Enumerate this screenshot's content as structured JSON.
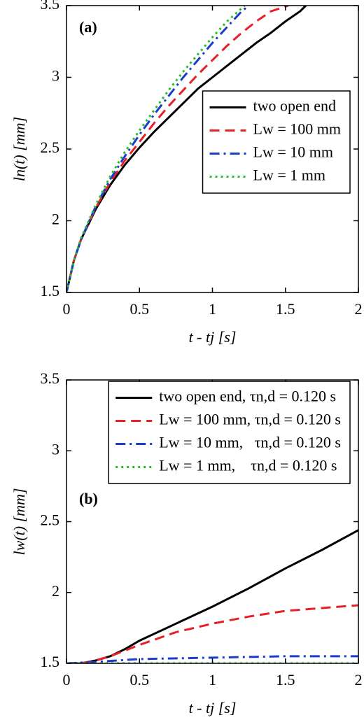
{
  "chart_data": [
    {
      "type": "line",
      "annotation": "(a)",
      "xlabel": "t - tj [s]",
      "ylabel": "ln(t) [mm]",
      "xlim": [
        0,
        2
      ],
      "ylim": [
        1.5,
        3.5
      ],
      "xticks": [
        0,
        0.5,
        1,
        1.5,
        2
      ],
      "yticks": [
        1.5,
        2,
        2.5,
        3,
        3.5
      ],
      "legend": "center right",
      "series": [
        {
          "name": "two open end",
          "color": "#000000",
          "linestyle": "solid",
          "x": [
            0,
            0.05,
            0.1,
            0.2,
            0.3,
            0.4,
            0.5,
            0.6,
            0.7,
            0.8,
            0.9,
            1.0,
            1.1,
            1.2,
            1.3,
            1.4,
            1.5,
            1.6,
            1.64
          ],
          "values": [
            1.5,
            1.72,
            1.87,
            2.08,
            2.25,
            2.39,
            2.51,
            2.62,
            2.72,
            2.82,
            2.92,
            3.0,
            3.08,
            3.16,
            3.24,
            3.31,
            3.39,
            3.46,
            3.5
          ]
        },
        {
          "name": "Lw = 100 mm",
          "color": "#e8202a",
          "linestyle": "dashed",
          "x": [
            0,
            0.05,
            0.1,
            0.2,
            0.3,
            0.4,
            0.5,
            0.6,
            0.7,
            0.8,
            0.9,
            1.0,
            1.1,
            1.2,
            1.3,
            1.4,
            1.52
          ],
          "values": [
            1.5,
            1.72,
            1.87,
            2.09,
            2.27,
            2.42,
            2.55,
            2.68,
            2.8,
            2.91,
            3.02,
            3.12,
            3.22,
            3.31,
            3.39,
            3.46,
            3.5
          ]
        },
        {
          "name": "Lw = 10 mm",
          "color": "#1c3cd0",
          "linestyle": "dashdot",
          "x": [
            0,
            0.05,
            0.1,
            0.2,
            0.3,
            0.4,
            0.5,
            0.6,
            0.7,
            0.8,
            0.9,
            1.0,
            1.1,
            1.2,
            1.25
          ],
          "values": [
            1.5,
            1.72,
            1.87,
            2.1,
            2.29,
            2.45,
            2.6,
            2.74,
            2.87,
            3.0,
            3.12,
            3.24,
            3.35,
            3.46,
            3.5
          ]
        },
        {
          "name": "Lw = 1 mm",
          "color": "#22c02a",
          "linestyle": "dotted",
          "x": [
            0,
            0.05,
            0.1,
            0.2,
            0.3,
            0.4,
            0.5,
            0.6,
            0.7,
            0.8,
            0.9,
            1.0,
            1.1,
            1.22
          ],
          "values": [
            1.5,
            1.72,
            1.88,
            2.11,
            2.31,
            2.48,
            2.63,
            2.77,
            2.91,
            3.04,
            3.16,
            3.28,
            3.39,
            3.5
          ]
        }
      ]
    },
    {
      "type": "line",
      "annotation": "(b)",
      "xlabel": "t - tj [s]",
      "ylabel": "lw(t) [mm]",
      "xlim": [
        0,
        2
      ],
      "ylim": [
        1.5,
        3.5
      ],
      "xticks": [
        0,
        0.5,
        1,
        1.5,
        2
      ],
      "yticks": [
        1.5,
        2,
        2.5,
        3,
        3.5
      ],
      "legend": "upper right",
      "series": [
        {
          "name": "two open end, τn,d = 0.120 s",
          "color": "#000000",
          "linestyle": "solid",
          "x": [
            0,
            0.1,
            0.2,
            0.3,
            0.4,
            0.5,
            0.75,
            1.0,
            1.25,
            1.5,
            1.75,
            2.0
          ],
          "values": [
            1.5,
            1.5,
            1.52,
            1.55,
            1.6,
            1.66,
            1.78,
            1.9,
            2.03,
            2.17,
            2.3,
            2.44
          ]
        },
        {
          "name": "Lw = 100 mm, τn,d = 0.120 s",
          "color": "#e8202a",
          "linestyle": "dashed",
          "x": [
            0,
            0.1,
            0.2,
            0.3,
            0.4,
            0.5,
            0.75,
            1.0,
            1.25,
            1.5,
            1.75,
            2.0
          ],
          "values": [
            1.5,
            1.5,
            1.52,
            1.55,
            1.59,
            1.63,
            1.72,
            1.78,
            1.83,
            1.87,
            1.89,
            1.91
          ]
        },
        {
          "name": "Lw = 10 mm,   τn,d = 0.120 s",
          "color": "#1c3cd0",
          "linestyle": "dashdot",
          "x": [
            0,
            0.2,
            0.5,
            1.0,
            1.5,
            2.0
          ],
          "values": [
            1.5,
            1.51,
            1.53,
            1.54,
            1.55,
            1.55
          ]
        },
        {
          "name": "Lw = 1 mm,    τn,d = 0.120 s",
          "color": "#22c02a",
          "linestyle": "dotted",
          "x": [
            0,
            2.0
          ],
          "values": [
            1.5,
            1.5
          ]
        }
      ]
    }
  ]
}
